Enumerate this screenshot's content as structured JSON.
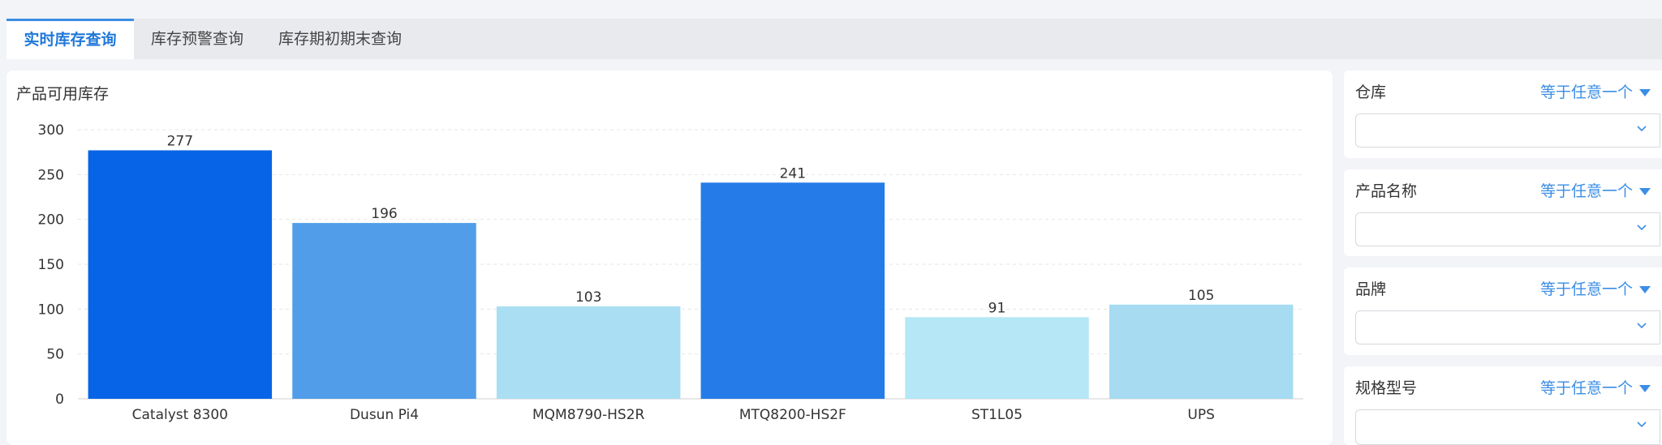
{
  "tabs": [
    {
      "label": "实时库存查询",
      "active": true
    },
    {
      "label": "库存预警查询",
      "active": false
    },
    {
      "label": "库存期初期末查询",
      "active": false
    }
  ],
  "chart_title": "产品可用库存",
  "filter_operator": "等于任意一个",
  "filters": [
    {
      "label": "仓库"
    },
    {
      "label": "产品名称"
    },
    {
      "label": "品牌"
    },
    {
      "label": "规格型号"
    }
  ],
  "colors": {
    "accent": "#3b8ee6",
    "bars": [
      "#0764e6",
      "#519de9",
      "#a9def3",
      "#257ce8",
      "#b5e7f6",
      "#a6dbf2"
    ]
  },
  "chart_data": {
    "type": "bar",
    "title": "产品可用库存",
    "categories": [
      "Catalyst 8300",
      "Dusun Pi4",
      "MQM8790-HS2R",
      "MTQ8200-HS2F",
      "ST1L05",
      "UPS"
    ],
    "values": [
      277,
      196,
      103,
      241,
      91,
      105
    ],
    "ylim": [
      0,
      300
    ],
    "yticks": [
      0,
      50,
      100,
      150,
      200,
      250,
      300
    ],
    "grid": true
  }
}
